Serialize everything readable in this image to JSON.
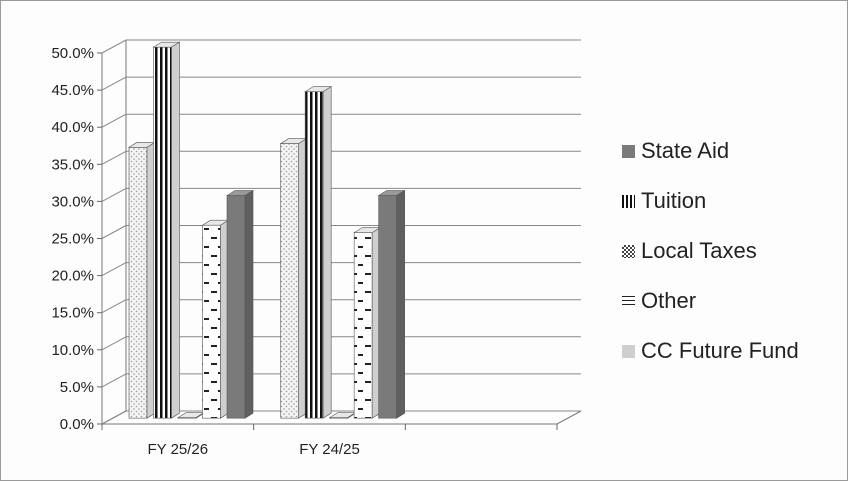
{
  "chart_data": {
    "type": "bar",
    "categories": [
      "FY 25/26",
      "FY 24/25",
      ""
    ],
    "series": [
      {
        "name": "State Aid",
        "values": [
          30.0,
          30.0,
          null
        ],
        "color": "#7a7a7a",
        "pattern": "solid"
      },
      {
        "name": "Tuition",
        "values": [
          50.0,
          44.0,
          null
        ],
        "color": "#1a1a1a",
        "pattern": "vertical-stripes"
      },
      {
        "name": "Local Taxes",
        "values": [
          0.0,
          0.0,
          null
        ],
        "color": "#555555",
        "pattern": "checker"
      },
      {
        "name": "Other",
        "values": [
          26.0,
          25.0,
          null
        ],
        "color": "#222222",
        "pattern": "dashes"
      },
      {
        "name": "CC Future Fund",
        "values": [
          36.5,
          37.0,
          null
        ],
        "color": "#cfcfcf",
        "pattern": "dots"
      }
    ],
    "draw_order": [
      "CC Future Fund",
      "Tuition",
      "Local Taxes",
      "Other",
      "State Aid"
    ],
    "y_ticks": [
      "0.0%",
      "5.0%",
      "10.0%",
      "15.0%",
      "20.0%",
      "25.0%",
      "30.0%",
      "35.0%",
      "40.0%",
      "45.0%",
      "50.0%"
    ],
    "ylim": [
      0,
      50
    ],
    "grid": true,
    "style": "3d-clustered-column",
    "legend_position": "right"
  }
}
